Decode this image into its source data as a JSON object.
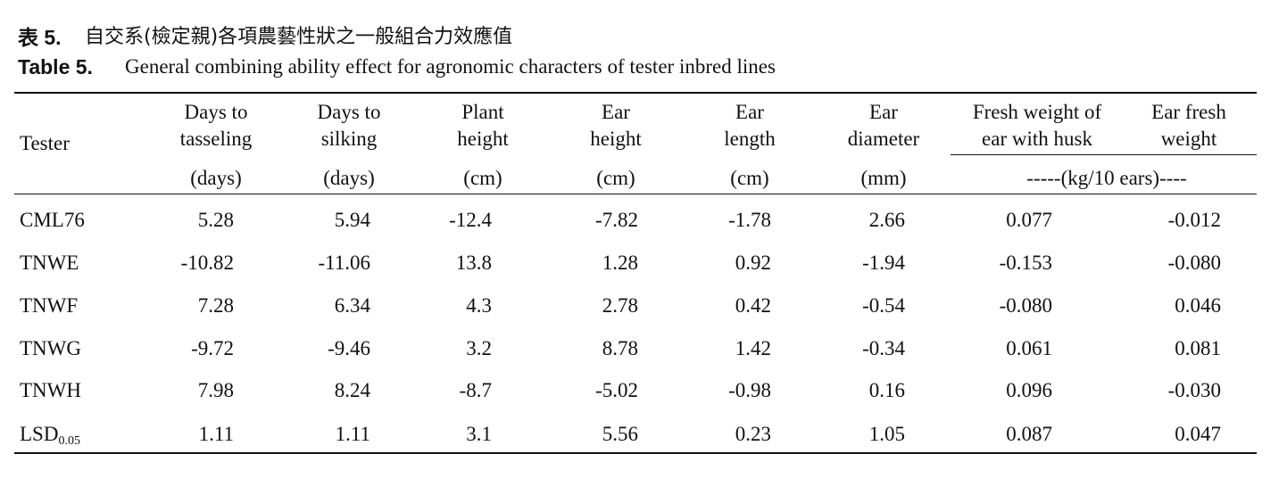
{
  "header": {
    "label_zh": "表 5.",
    "title_zh": "自交系(檢定親)各項農藝性狀之一般組合力效應值",
    "label_en": "Table 5.",
    "title_en": "General combining ability effect for agronomic characters of tester inbred lines"
  },
  "table": {
    "columns": [
      [
        "Tester"
      ],
      [
        "Days to",
        "tasseling"
      ],
      [
        "Days to",
        "silking"
      ],
      [
        "Plant",
        "height"
      ],
      [
        "Ear",
        "height"
      ],
      [
        "Ear",
        "length"
      ],
      [
        "Ear",
        "diameter"
      ],
      [
        "Fresh weight of",
        "ear with husk"
      ],
      [
        "Ear fresh",
        "weight"
      ]
    ],
    "units": [
      "(days)",
      "(days)",
      "(cm)",
      "(cm)",
      "(cm)",
      "(mm)"
    ],
    "shared_unit": "-----(kg/10 ears)----",
    "rows": [
      {
        "label": "CML76",
        "values": [
          "5.28",
          "5.94",
          "-12.4",
          "-7.82",
          "-1.78",
          "2.66",
          "0.077",
          "-0.012"
        ]
      },
      {
        "label": "TNWE",
        "values": [
          "-10.82",
          "-11.06",
          "13.8",
          "1.28",
          "0.92",
          "-1.94",
          "-0.153",
          "-0.080"
        ]
      },
      {
        "label": "TNWF",
        "values": [
          "7.28",
          "6.34",
          "4.3",
          "2.78",
          "0.42",
          "-0.54",
          "-0.080",
          "0.046"
        ]
      },
      {
        "label": "TNWG",
        "values": [
          "-9.72",
          "-9.46",
          "3.2",
          "8.78",
          "1.42",
          "-0.34",
          "0.061",
          "0.081"
        ]
      },
      {
        "label": "TNWH",
        "values": [
          "7.98",
          "8.24",
          "-8.7",
          "-5.02",
          "-0.98",
          "0.16",
          "0.096",
          "-0.030"
        ]
      },
      {
        "label": "LSD",
        "label_sub": "0.05",
        "values": [
          "1.11",
          "1.11",
          "3.1",
          "5.56",
          "0.23",
          "1.05",
          "0.087",
          "0.047"
        ]
      }
    ]
  }
}
